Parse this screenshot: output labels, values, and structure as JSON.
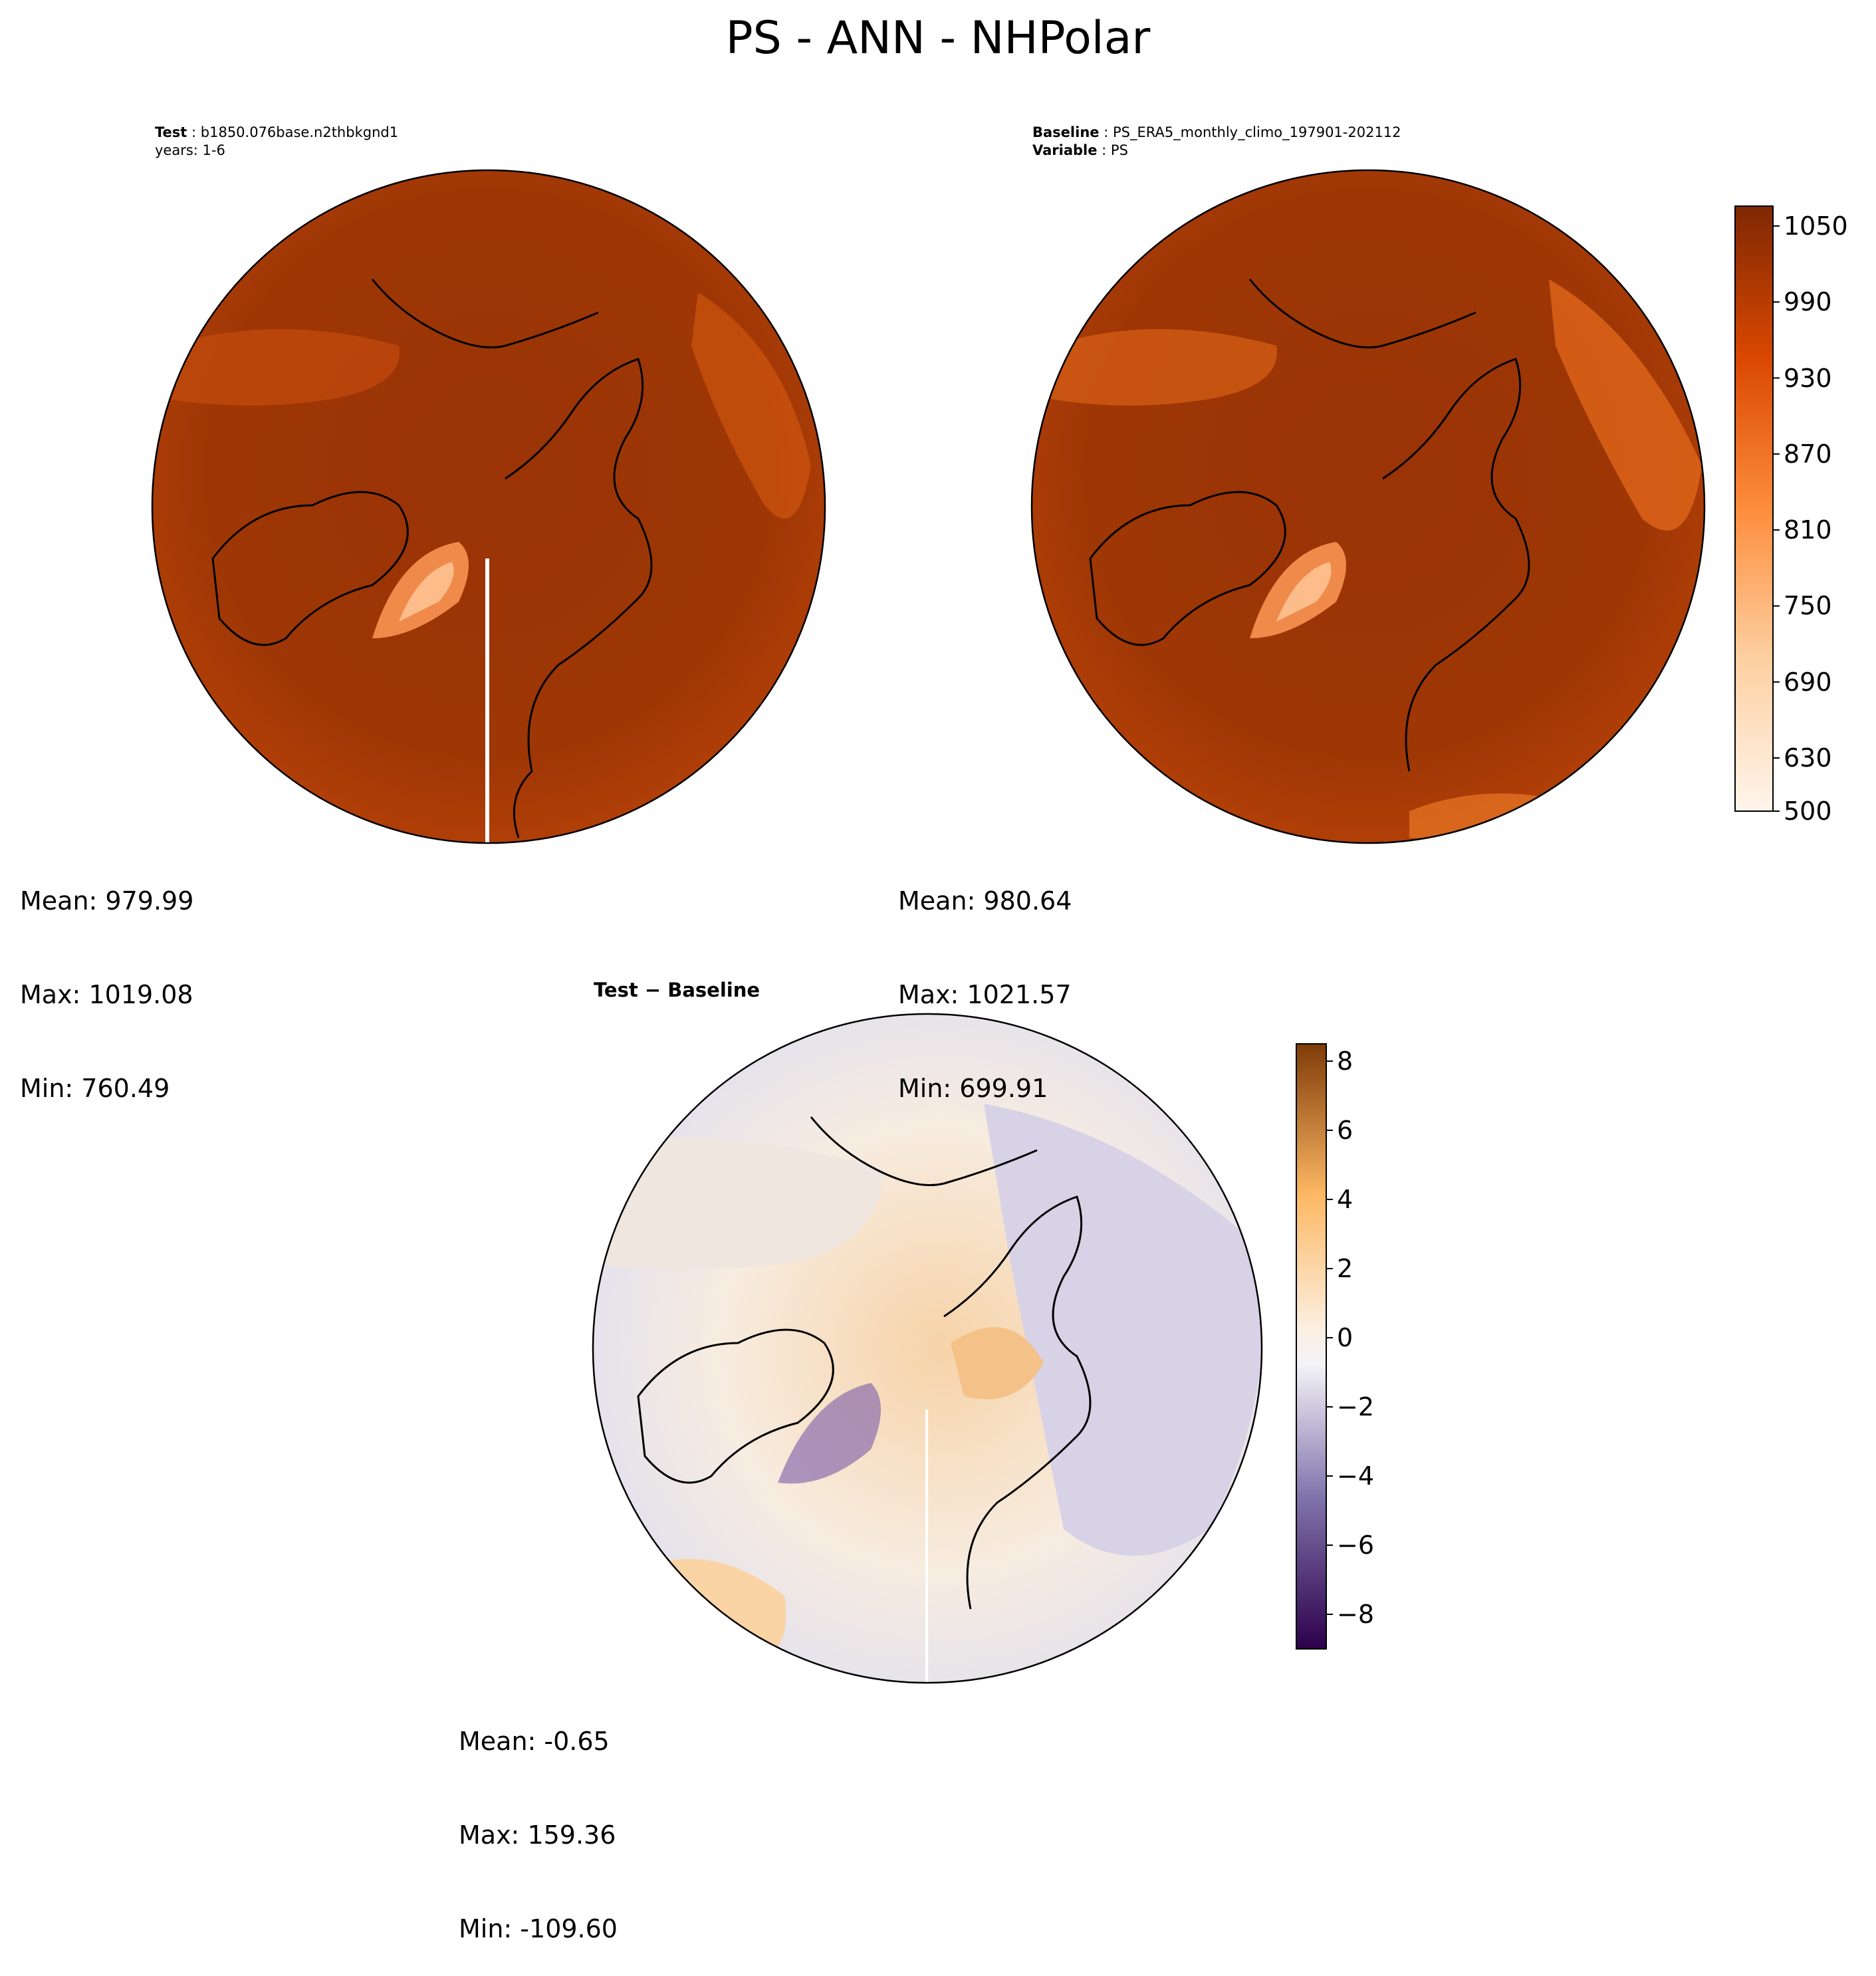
{
  "title": "PS - ANN - NHPolar",
  "panels": {
    "test": {
      "header_label": "Test",
      "header_value": "b1850.076base.n2thbkgnd1",
      "header_line2": "years: 1-6",
      "stats": {
        "mean": "Mean: 979.99",
        "max": "Max: 1019.08",
        "min": "Min: 760.49"
      }
    },
    "baseline": {
      "header_label": "Baseline",
      "header_value": "PS_ERA5_monthly_climo_197901-202112",
      "header_label2": "Variable",
      "header_value2": "PS",
      "stats": {
        "mean": "Mean: 980.64",
        "max": "Max: 1021.57",
        "min": "Min: 699.91"
      }
    },
    "diff": {
      "title": "Test − Baseline",
      "stats": {
        "mean": "Mean: -0.65",
        "max": "Max: 159.36",
        "min": "Min: -109.60"
      }
    }
  },
  "chart_data": [
    {
      "type": "heatmap",
      "name": "Test",
      "projection": "north-polar-stereographic",
      "variable": "PS",
      "colormap": "Oranges",
      "levels": [
        500,
        1050
      ],
      "stats": {
        "mean": 979.99,
        "max": 1019.08,
        "min": 760.49
      }
    },
    {
      "type": "heatmap",
      "name": "Baseline",
      "projection": "north-polar-stereographic",
      "variable": "PS",
      "colormap": "Oranges",
      "colorbar": {
        "ticks": [
          "500",
          "630",
          "690",
          "750",
          "810",
          "870",
          "930",
          "990",
          "1050"
        ],
        "range": [
          500,
          1050
        ]
      },
      "stats": {
        "mean": 980.64,
        "max": 1021.57,
        "min": 699.91
      }
    },
    {
      "type": "heatmap",
      "name": "Test − Baseline",
      "projection": "north-polar-stereographic",
      "colormap": "PuOr_r",
      "colorbar": {
        "ticks": [
          "8",
          "6",
          "4",
          "2",
          "0",
          "−2",
          "−4",
          "−6",
          "−8"
        ],
        "range": [
          -9,
          8.5
        ]
      },
      "stats": {
        "mean": -0.65,
        "max": 159.36,
        "min": -109.6
      }
    }
  ]
}
